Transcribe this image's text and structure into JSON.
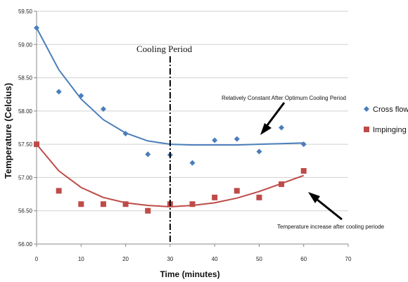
{
  "chart_data": {
    "type": "scatter",
    "xlabel": "Time (minutes)",
    "ylabel": "Temperature  (Celcius)",
    "xlim": [
      0,
      70
    ],
    "ylim": [
      56.0,
      59.5
    ],
    "x_ticks": [
      "0",
      "10",
      "20",
      "30",
      "40",
      "50",
      "60",
      "70"
    ],
    "y_ticks": [
      "56.00",
      "56.50",
      "57.00",
      "57.50",
      "58.00",
      "58.50",
      "59.00",
      "59.50"
    ],
    "grid": "horizontal",
    "legend_position": "right",
    "series": [
      {
        "name": "Cross flow",
        "marker": "diamond",
        "color": "#4a7ebb",
        "x": [
          0,
          5,
          10,
          15,
          20,
          25,
          30,
          35,
          40,
          45,
          50,
          55,
          60
        ],
        "y": [
          59.25,
          58.29,
          58.23,
          58.03,
          57.66,
          57.35,
          57.34,
          57.22,
          57.56,
          57.58,
          57.39,
          57.75,
          57.5
        ],
        "trend_y": [
          59.25,
          58.62,
          58.18,
          57.87,
          57.67,
          57.55,
          57.5,
          57.49,
          57.49,
          57.49,
          57.5,
          57.51,
          57.52
        ]
      },
      {
        "name": "Impinging",
        "marker": "square",
        "color": "#be4b48",
        "x": [
          0,
          5,
          10,
          15,
          20,
          25,
          30,
          35,
          40,
          45,
          50,
          55,
          60
        ],
        "y": [
          57.5,
          56.8,
          56.6,
          56.6,
          56.6,
          56.5,
          56.6,
          56.6,
          56.7,
          56.8,
          56.7,
          56.9,
          57.1
        ],
        "trend_y": [
          57.5,
          57.1,
          56.85,
          56.7,
          56.62,
          56.58,
          56.56,
          56.58,
          56.62,
          56.69,
          56.79,
          56.91,
          57.03
        ]
      }
    ],
    "annotations": {
      "cooling_period": "Cooling Period",
      "cooling_period_x": 30,
      "cross_flow_note": "Relatively Constant After Optimum Cooling Period",
      "impinging_note": "Temperature increase after cooling periode"
    }
  }
}
